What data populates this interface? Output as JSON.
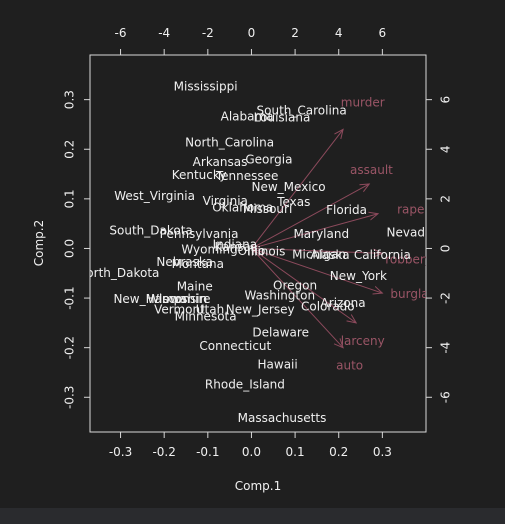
{
  "chart_data": {
    "type": "biplot",
    "xlabel": "Comp.1",
    "ylabel": "Comp.2",
    "xlim": [
      -0.37,
      0.4
    ],
    "ylim": [
      -0.37,
      0.39
    ],
    "x_ticks": [
      -0.3,
      -0.2,
      -0.1,
      0.0,
      0.1,
      0.2,
      0.3
    ],
    "y_ticks": [
      -0.3,
      -0.2,
      -0.1,
      0.0,
      0.1,
      0.2,
      0.3
    ],
    "top_ticks": [
      -6,
      -4,
      -2,
      0,
      2,
      4,
      6
    ],
    "right_ticks": [
      -6,
      -4,
      -2,
      0,
      2,
      4,
      6
    ],
    "colors": {
      "background": "#1f1f1f",
      "axis": "#d8d8d8",
      "text": "#f0f0f0",
      "loading_arrow": "#8c4a5c",
      "loading_text": "#9a5566"
    },
    "states": [
      {
        "name": "Mississippi",
        "x": -0.105,
        "y": 0.325
      },
      {
        "name": "South_Carolina",
        "x": 0.115,
        "y": 0.277
      },
      {
        "name": "Alabama",
        "x": -0.01,
        "y": 0.265
      },
      {
        "name": "Louisiana",
        "x": 0.07,
        "y": 0.263
      },
      {
        "name": "North_Carolina",
        "x": -0.05,
        "y": 0.213
      },
      {
        "name": "Georgia",
        "x": 0.04,
        "y": 0.178
      },
      {
        "name": "Arkansas",
        "x": -0.072,
        "y": 0.173
      },
      {
        "name": "Kentucky",
        "x": -0.12,
        "y": 0.147
      },
      {
        "name": "Tennessee",
        "x": -0.01,
        "y": 0.145
      },
      {
        "name": "New_Mexico",
        "x": 0.085,
        "y": 0.123
      },
      {
        "name": "West_Virginia",
        "x": -0.222,
        "y": 0.105
      },
      {
        "name": "Virginia",
        "x": -0.06,
        "y": 0.095
      },
      {
        "name": "Texas",
        "x": 0.097,
        "y": 0.093
      },
      {
        "name": "Oklahoma",
        "x": -0.02,
        "y": 0.082
      },
      {
        "name": "Missouri",
        "x": 0.037,
        "y": 0.079
      },
      {
        "name": "Florida",
        "x": 0.218,
        "y": 0.077
      },
      {
        "name": "South_Dakota",
        "x": -0.23,
        "y": 0.035
      },
      {
        "name": "Pennsylvania",
        "x": -0.12,
        "y": 0.028
      },
      {
        "name": "Maryland",
        "x": 0.16,
        "y": 0.028
      },
      {
        "name": "Nevada",
        "x": 0.362,
        "y": 0.031
      },
      {
        "name": "Indiana",
        "x": -0.038,
        "y": 0.007
      },
      {
        "name": "Kansas",
        "x": -0.036,
        "y": 0.002
      },
      {
        "name": "Wyoming",
        "x": -0.096,
        "y": -0.003
      },
      {
        "name": "Ohio",
        "x": 0.0,
        "y": -0.006
      },
      {
        "name": "Illinois",
        "x": 0.034,
        "y": -0.007
      },
      {
        "name": "Michigan",
        "x": 0.155,
        "y": -0.013
      },
      {
        "name": "Alaska",
        "x": 0.18,
        "y": -0.014
      },
      {
        "name": "California",
        "x": 0.3,
        "y": -0.014
      },
      {
        "name": "Nebraska",
        "x": -0.153,
        "y": -0.028
      },
      {
        "name": "Montana",
        "x": -0.123,
        "y": -0.032
      },
      {
        "name": "North_Dakota",
        "x": -0.305,
        "y": -0.05
      },
      {
        "name": "New_York",
        "x": 0.245,
        "y": -0.057
      },
      {
        "name": "Maine",
        "x": -0.13,
        "y": -0.078
      },
      {
        "name": "Oregon",
        "x": 0.1,
        "y": -0.076
      },
      {
        "name": "Washington",
        "x": 0.065,
        "y": -0.096
      },
      {
        "name": "New_Hampshire",
        "x": -0.205,
        "y": -0.103
      },
      {
        "name": "Wisconsin",
        "x": -0.17,
        "y": -0.103
      },
      {
        "name": "Iowa",
        "x": -0.18,
        "y": -0.103
      },
      {
        "name": "Arizona",
        "x": 0.21,
        "y": -0.111
      },
      {
        "name": "Colorado",
        "x": 0.175,
        "y": -0.118
      },
      {
        "name": "Vermont",
        "x": -0.165,
        "y": -0.124
      },
      {
        "name": "Utah",
        "x": -0.095,
        "y": -0.124
      },
      {
        "name": "New_Jersey",
        "x": 0.02,
        "y": -0.124
      },
      {
        "name": "Minnesota",
        "x": -0.105,
        "y": -0.138
      },
      {
        "name": "Delaware",
        "x": 0.067,
        "y": -0.17
      },
      {
        "name": "Connecticut",
        "x": -0.037,
        "y": -0.198
      },
      {
        "name": "Hawaii",
        "x": 0.06,
        "y": -0.235
      },
      {
        "name": "Rhode_Island",
        "x": -0.015,
        "y": -0.275
      },
      {
        "name": "Massachusetts",
        "x": 0.07,
        "y": -0.343
      }
    ],
    "loadings": [
      {
        "name": "murder",
        "x": 0.21,
        "y": 0.24,
        "lx": 0.255,
        "ly": 0.293
      },
      {
        "name": "assault",
        "x": 0.27,
        "y": 0.13,
        "lx": 0.275,
        "ly": 0.157
      },
      {
        "name": "rape",
        "x": 0.29,
        "y": 0.07,
        "lx": 0.365,
        "ly": 0.078
      },
      {
        "name": "robbery",
        "x": 0.3,
        "y": -0.01,
        "lx": 0.36,
        "ly": -0.023
      },
      {
        "name": "burglary",
        "x": 0.3,
        "y": -0.09,
        "lx": 0.376,
        "ly": -0.093
      },
      {
        "name": "larceny",
        "x": 0.24,
        "y": -0.15,
        "lx": 0.255,
        "ly": -0.188
      },
      {
        "name": "auto",
        "x": 0.21,
        "y": -0.2,
        "lx": 0.225,
        "ly": -0.237
      }
    ]
  }
}
